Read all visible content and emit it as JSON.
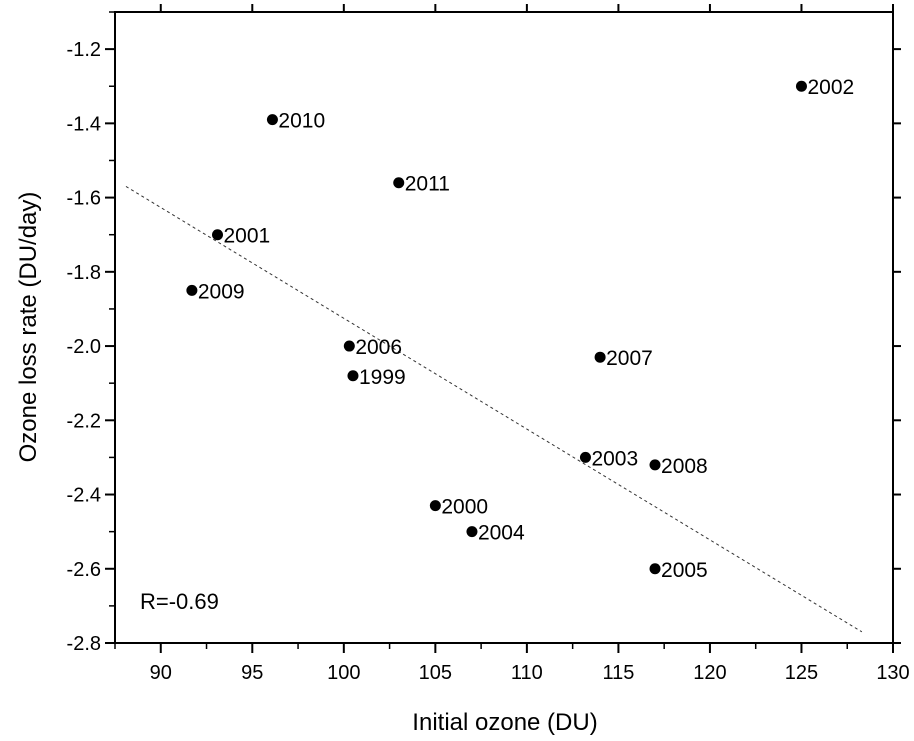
{
  "chart_data": {
    "type": "scatter",
    "title": "",
    "xlabel": "Initial ozone (DU)",
    "ylabel": "Ozone loss rate (DU/day)",
    "xlim": [
      87.5,
      130
    ],
    "ylim": [
      -2.8,
      -1.1
    ],
    "xticks": [
      90,
      95,
      100,
      105,
      110,
      115,
      120,
      125,
      130
    ],
    "yticks": [
      -1.2,
      -1.4,
      -1.6,
      -1.8,
      -2.0,
      -2.2,
      -2.4,
      -2.6,
      -2.8
    ],
    "xtick_labels": [
      "90",
      "95",
      "100",
      "105",
      "110",
      "115",
      "120",
      "125",
      "130"
    ],
    "ytick_labels": [
      "-1.2",
      "-1.4",
      "-1.6",
      "-1.8",
      "-2.0",
      "-2.2",
      "-2.4",
      "-2.6",
      "-2.8"
    ],
    "grid": false,
    "points": [
      {
        "label": "1999",
        "x": 100.5,
        "y": -2.08
      },
      {
        "label": "2000",
        "x": 105.0,
        "y": -2.43
      },
      {
        "label": "2001",
        "x": 93.1,
        "y": -1.7
      },
      {
        "label": "2002",
        "x": 125.0,
        "y": -1.3
      },
      {
        "label": "2003",
        "x": 113.2,
        "y": -2.3
      },
      {
        "label": "2004",
        "x": 107.0,
        "y": -2.5
      },
      {
        "label": "2005",
        "x": 117.0,
        "y": -2.6
      },
      {
        "label": "2006",
        "x": 100.3,
        "y": -2.0
      },
      {
        "label": "2007",
        "x": 114.0,
        "y": -2.03
      },
      {
        "label": "2008",
        "x": 117.0,
        "y": -2.32
      },
      {
        "label": "2009",
        "x": 91.7,
        "y": -1.85
      },
      {
        "label": "2010",
        "x": 96.1,
        "y": -1.39
      },
      {
        "label": "2011",
        "x": 103.0,
        "y": -1.56
      }
    ],
    "fit_line": {
      "x": [
        88.1,
        128.3
      ],
      "y": [
        -1.57,
        -2.77
      ]
    },
    "annotation": "R=-0.69"
  }
}
